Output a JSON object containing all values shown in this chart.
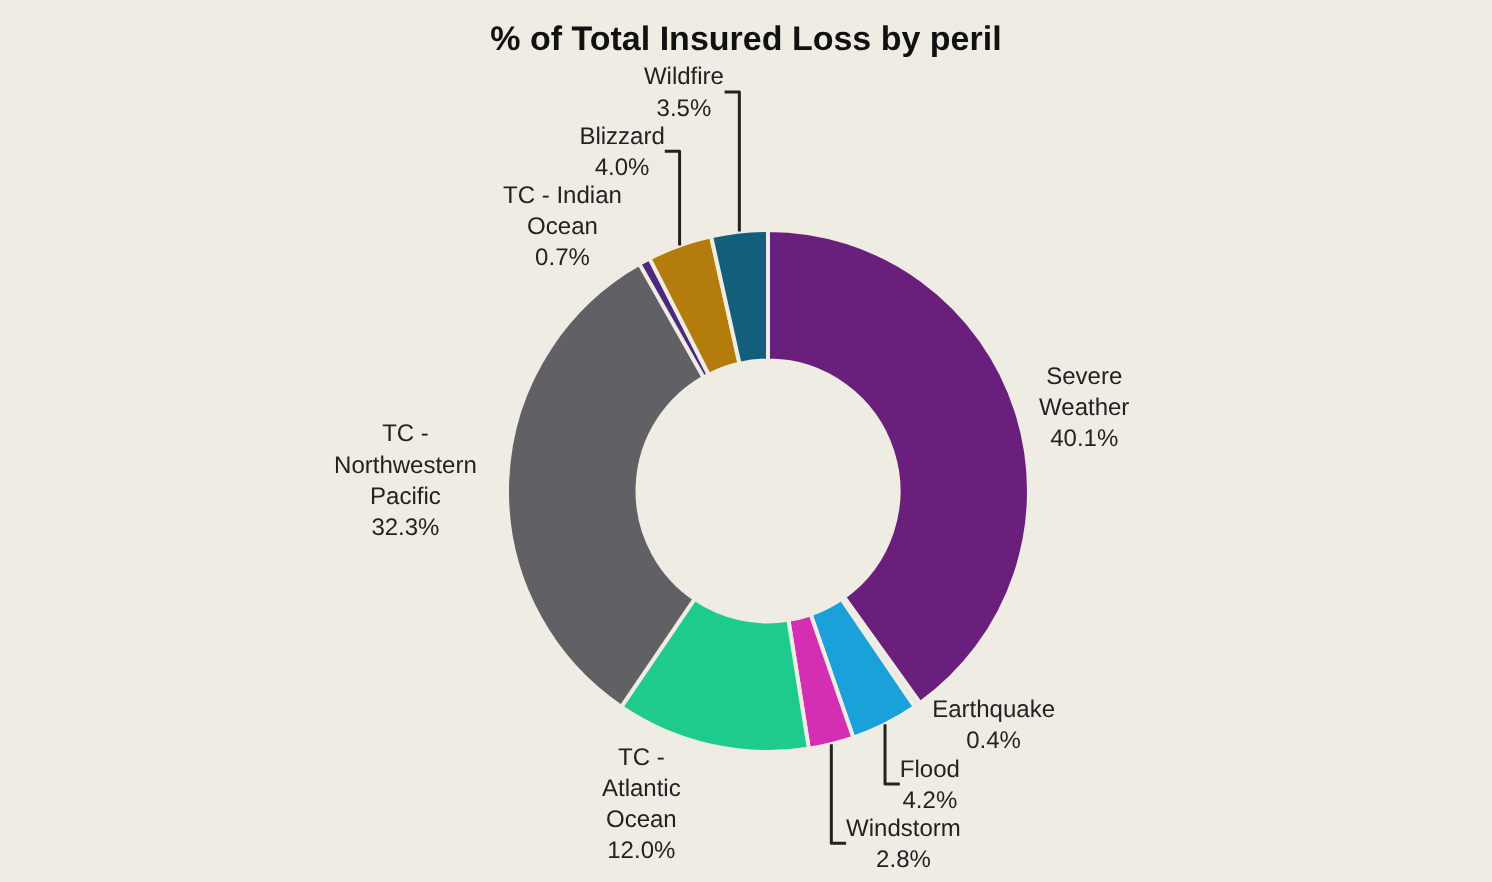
{
  "chart_data": {
    "type": "donut",
    "title": "% of Total Insured Loss by peril",
    "categories": [
      "Severe Weather",
      "Earthquake",
      "Flood",
      "Windstorm",
      "TC - Atlantic Ocean",
      "TC - Northwestern Pacific",
      "TC - Indian Ocean",
      "Blizzard",
      "Wildfire"
    ],
    "values": [
      40.1,
      0.4,
      4.2,
      2.8,
      12.0,
      32.3,
      0.7,
      4.0,
      3.5
    ],
    "colors": [
      "#6b1f7c",
      "#e8e8e8",
      "#1ba1d9",
      "#d42fb3",
      "#1fcb8c",
      "#606065",
      "#4a2a7a",
      "#b47c0c",
      "#125f7c"
    ],
    "value_labels": [
      "40.1%",
      "0.4%",
      "4.2%",
      "2.8%",
      "12.0%",
      "32.3%",
      "0.7%",
      "4.0%",
      "3.5%"
    ],
    "legend": false
  }
}
